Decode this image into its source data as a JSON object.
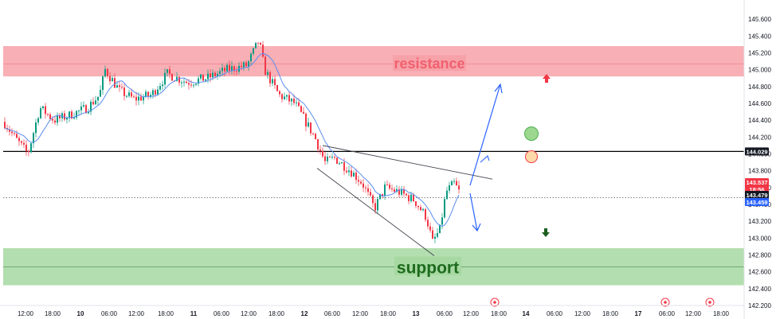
{
  "chart_data": {
    "type": "candlestick",
    "y_axis": {
      "range": [
        142.2,
        145.7
      ],
      "tick_labels": [
        "145.600",
        "145.400",
        "145.200",
        "145.000",
        "144.800",
        "144.600",
        "144.400",
        "144.200",
        "144.000",
        "143.800",
        "143.600",
        "143.400",
        "143.200",
        "143.000",
        "142.800",
        "142.600",
        "142.400",
        "142.200"
      ]
    },
    "x_axis": {
      "tick_labels": [
        "12:00",
        "18:00",
        "10",
        "06:00",
        "12:00",
        "18:00",
        "11",
        "06:00",
        "12:00",
        "18:00",
        "12",
        "06:00",
        "12:00",
        "18:00",
        "13",
        "06:00",
        "12:00",
        "18:00",
        "14",
        "06:00",
        "12:00",
        "18:00",
        "17",
        "06:00",
        "12:00",
        "18:00"
      ]
    },
    "zones": [
      {
        "name": "resistance",
        "low": 144.92,
        "high": 145.28,
        "mid": 145.07,
        "color": "#f7a1a8",
        "text_color": "#f0606f"
      },
      {
        "name": "support",
        "low": 142.44,
        "high": 142.88,
        "mid": 142.66,
        "color": "#a6d8a1",
        "text_color": "#1e6b1e"
      }
    ],
    "horizontal_line": {
      "value": 144.029,
      "label": "144.029",
      "color": "#000000"
    },
    "dotted_line": {
      "value": 143.479,
      "color": "#555555"
    },
    "price_badges": [
      {
        "value": 143.537,
        "lines": [
          "143.537",
          "18:56"
        ],
        "color": "#f23645"
      },
      {
        "value": 143.479,
        "lines": [
          "143.479"
        ],
        "color": "#131722"
      },
      {
        "value": 143.459,
        "lines": [
          "143.459"
        ],
        "color": "#2962ff"
      }
    ],
    "moving_average_color": "#5b8def",
    "candle_colors": {
      "up": "#089981",
      "down": "#f23645"
    },
    "markers": {
      "green_circle": {
        "color": "#9cd88f",
        "stroke": "#4caf50"
      },
      "orange_circle": {
        "color": "#fcd9a8",
        "stroke": "#f23645"
      },
      "up_arrow_color": "#f23645",
      "down_arrow_color": "#1b5e20"
    },
    "legend": "none",
    "grid": false
  }
}
